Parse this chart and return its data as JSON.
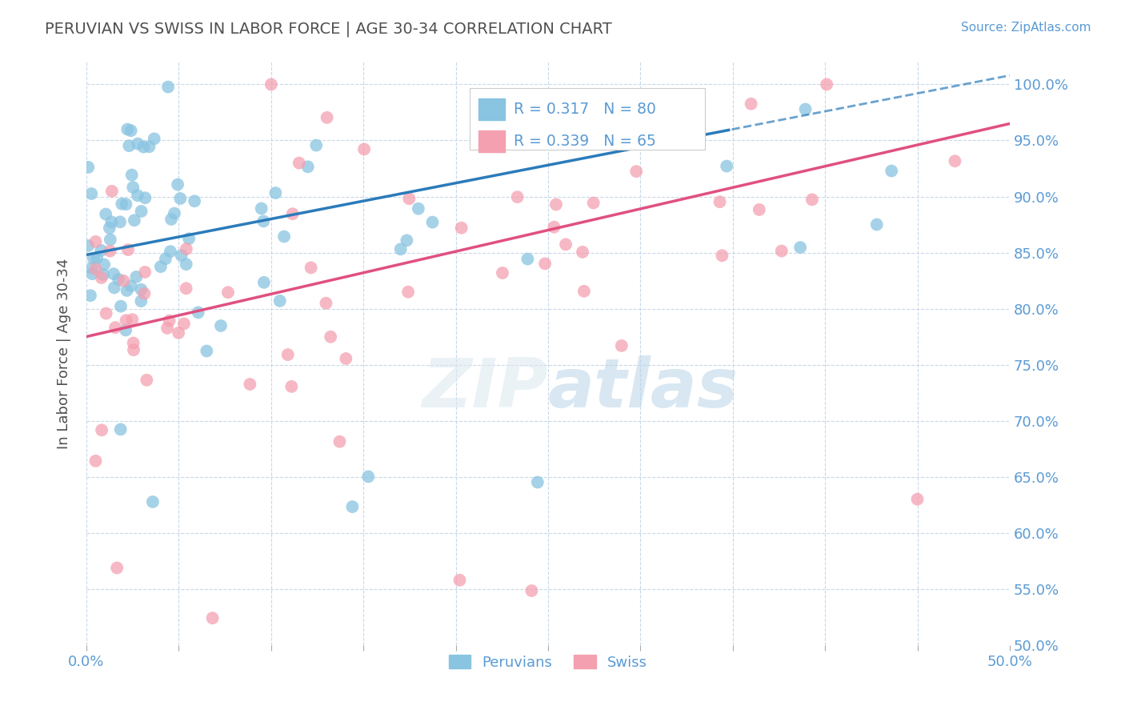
{
  "title": "PERUVIAN VS SWISS IN LABOR FORCE | AGE 30-34 CORRELATION CHART",
  "source": "Source: ZipAtlas.com",
  "ylabel": "In Labor Force | Age 30-34",
  "xlim": [
    0.0,
    0.5
  ],
  "ylim": [
    0.5,
    1.02
  ],
  "xticks": [
    0.0,
    0.05,
    0.1,
    0.15,
    0.2,
    0.25,
    0.3,
    0.35,
    0.4,
    0.45,
    0.5
  ],
  "yticks": [
    0.5,
    0.55,
    0.6,
    0.65,
    0.7,
    0.75,
    0.8,
    0.85,
    0.9,
    0.95,
    1.0
  ],
  "yticklabels_right": [
    "50.0%",
    "55.0%",
    "60.0%",
    "65.0%",
    "70.0%",
    "75.0%",
    "80.0%",
    "85.0%",
    "90.0%",
    "95.0%",
    "100.0%"
  ],
  "peruvian_color": "#89c4e1",
  "swiss_color": "#f4a0b0",
  "peruvian_line_color": "#2b7bba",
  "swiss_line_color": "#e05080",
  "R_peruvian": 0.317,
  "N_peruvian": 80,
  "R_swiss": 0.339,
  "N_swiss": 65,
  "legend_label_peruvian": "Peruvians",
  "legend_label_swiss": "Swiss",
  "background_color": "#ffffff",
  "grid_color": "#c8d8e8",
  "title_color": "#505050",
  "axis_color": "#5b9bd5",
  "watermark_zip": "ZIP",
  "watermark_atlas": "atlas",
  "peruvian_line_intercept": 0.848,
  "peruvian_line_slope": 0.32,
  "swiss_line_intercept": 0.775,
  "swiss_line_slope": 0.38
}
